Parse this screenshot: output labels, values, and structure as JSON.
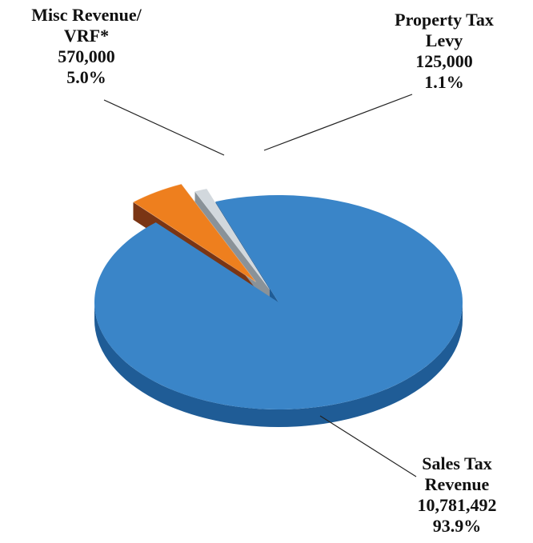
{
  "chart_data": {
    "type": "pie",
    "title": "",
    "slices": [
      {
        "name_lines": [
          "Sales Tax",
          "Revenue"
        ],
        "value": 10781492,
        "value_label": "10,781,492",
        "percent": 93.9,
        "percent_label": "93.9%",
        "color": "#3a85c8",
        "side_color": "#1f5c96"
      },
      {
        "name_lines": [
          "Misc Revenue/",
          "VRF*"
        ],
        "value": 570000,
        "value_label": "570,000",
        "percent": 5.0,
        "percent_label": "5.0%",
        "color": "#ee7f1e",
        "side_color": "#7a3514"
      },
      {
        "name_lines": [
          "Property Tax",
          "Levy"
        ],
        "value": 125000,
        "value_label": "125,000",
        "percent": 1.1,
        "percent_label": "1.1%",
        "color": "#d2d8dd",
        "side_color": "#8a9298"
      }
    ],
    "legend": "none",
    "style": "3d-exploded"
  }
}
